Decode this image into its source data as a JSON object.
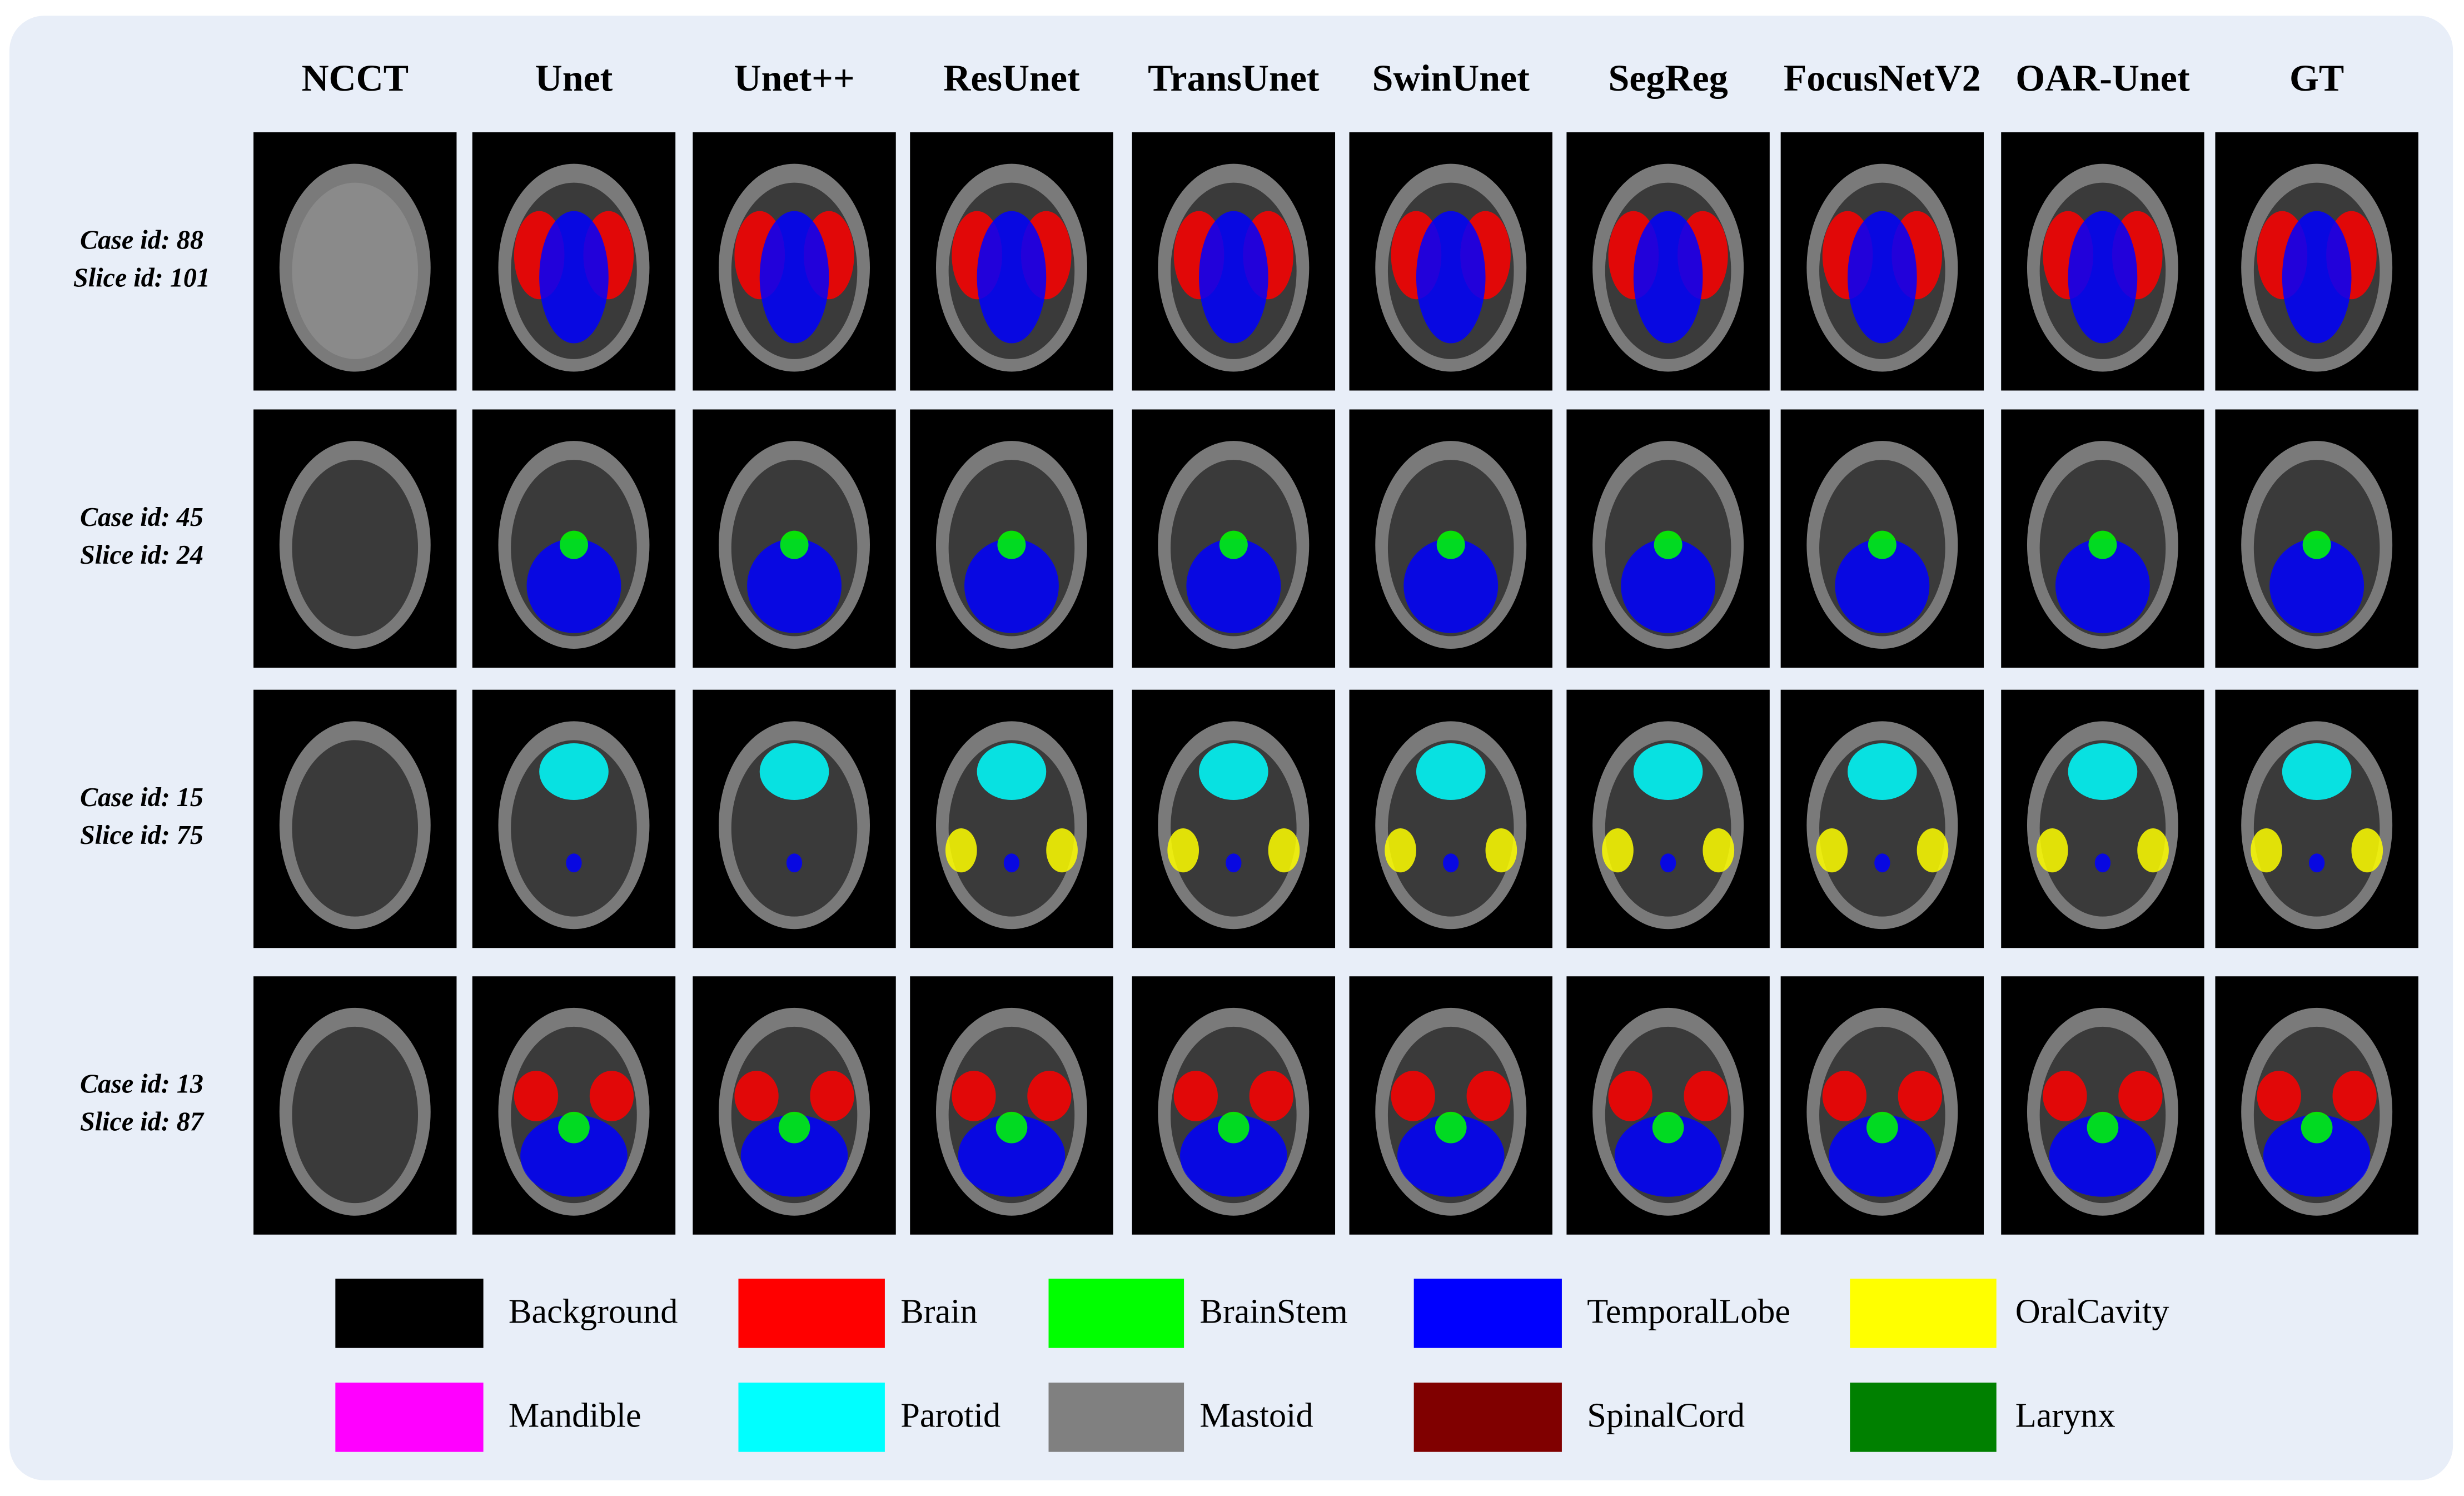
{
  "columns": [
    "NCCT",
    "Unet",
    "Unet++",
    "ResUnet",
    "TransUnet",
    "SwinUnet",
    "SegReg",
    "FocusNetV2",
    "OAR-Unet",
    "GT"
  ],
  "rows": [
    {
      "case_id": "Case id:  88",
      "slice_id": "Slice id:  101"
    },
    {
      "case_id": "Case id:  45",
      "slice_id": "Slice id:  24"
    },
    {
      "case_id": "Case id:  15",
      "slice_id": "Slice id:  75"
    },
    {
      "case_id": "Case id:  13",
      "slice_id": "Slice id:  87"
    }
  ],
  "legend": [
    {
      "label": "Background",
      "color": "#000000"
    },
    {
      "label": "Brain",
      "color": "#ff0000"
    },
    {
      "label": "BrainStem",
      "color": "#00ff00"
    },
    {
      "label": "TemporalLobe",
      "color": "#0000ff"
    },
    {
      "label": "OralCavity",
      "color": "#ffff00"
    },
    {
      "label": "Mandible",
      "color": "#ff00ff"
    },
    {
      "label": "Parotid",
      "color": "#00ffff"
    },
    {
      "label": "Mastoid",
      "color": "#808080"
    },
    {
      "label": "SpinalCord",
      "color": "#800000"
    },
    {
      "label": "Larynx",
      "color": "#008000"
    }
  ]
}
